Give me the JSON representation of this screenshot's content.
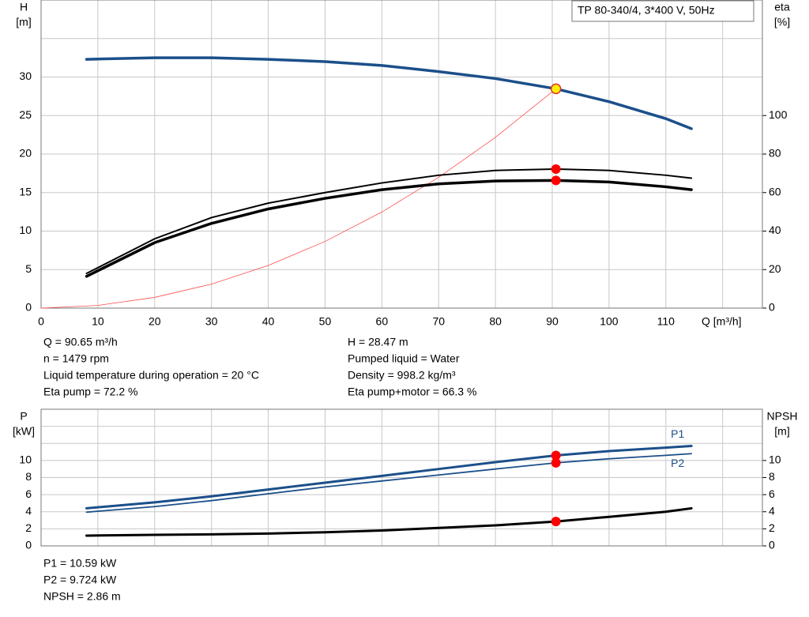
{
  "chart_data": [
    {
      "type": "line",
      "box": "TP 80-340/4, 3*400 V, 50Hz",
      "xlabel": "Q [m³/h]",
      "ylabel": [
        "H",
        "[m]"
      ],
      "y2label": [
        "eta",
        "[%]"
      ],
      "xlim": [
        0,
        127
      ],
      "ylim": [
        0,
        40
      ],
      "y2lim": [
        0,
        160
      ],
      "xticks": [
        0,
        10,
        20,
        30,
        40,
        50,
        60,
        70,
        80,
        90,
        100,
        110,
        {
          "value": 120,
          "label": null
        }
      ],
      "yticks": [
        0,
        5,
        10,
        15,
        20,
        25,
        30,
        {
          "value": 35,
          "label": null
        }
      ],
      "y2ticks": [
        0,
        20,
        40,
        60,
        80,
        100
      ],
      "grid": true,
      "series": [
        {
          "color": "#ff4d4d",
          "width": 0.8,
          "x": [
            0,
            10,
            20,
            30,
            40,
            50,
            60,
            70,
            80,
            90.65
          ],
          "values": [
            0,
            0.35,
            1.39,
            3.12,
            5.54,
            8.66,
            12.47,
            16.98,
            22.17,
            28.47
          ]
        },
        {
          "color": "#000000",
          "width": 2,
          "axis": "y2",
          "x": [
            8,
            20,
            30,
            40,
            50,
            60,
            70,
            80,
            90.65,
            100,
            110,
            114.5
          ],
          "values": [
            18,
            36,
            47,
            54.5,
            60,
            65,
            69,
            71.5,
            72.2,
            71.5,
            69,
            67.5
          ]
        },
        {
          "color": "#000000",
          "width": 3.5,
          "axis": "y2",
          "x": [
            8,
            20,
            30,
            40,
            50,
            60,
            70,
            80,
            90.65,
            100,
            110,
            114.5
          ],
          "values": [
            16.5,
            34,
            44,
            51.5,
            57,
            61.5,
            64.5,
            66,
            66.3,
            65.5,
            63,
            61.5
          ]
        },
        {
          "color": "#1b4f8a",
          "width": 3.5,
          "x": [
            8,
            20,
            30,
            40,
            50,
            60,
            70,
            80,
            90.65,
            100,
            110,
            114.5
          ],
          "values": [
            32.3,
            32.5,
            32.5,
            32.3,
            32,
            31.5,
            30.7,
            29.8,
            28.47,
            26.8,
            24.6,
            23.3
          ]
        }
      ],
      "points": [
        {
          "x": 90.65,
          "y": 72.2,
          "axis": "y2",
          "color": "#ff0000"
        },
        {
          "x": 90.65,
          "y": 66.3,
          "axis": "y2",
          "color": "#ff0000"
        },
        {
          "x": 90.65,
          "y": 28.47,
          "color": "#ffee00"
        }
      ],
      "info": [
        [
          "Q = 90.65 m³/h",
          "n = 1479 rpm",
          "Liquid temperature during operation = 20 °C",
          "Eta pump = 72.2 %"
        ],
        [
          "H = 28.47 m",
          "Pumped liquid = Water",
          "Density = 998.2 kg/m³",
          "Eta pump+motor = 66.3 %"
        ]
      ]
    },
    {
      "type": "line",
      "ylabel": [
        "P",
        "[kW]"
      ],
      "y2label": [
        "NPSH",
        "[m]"
      ],
      "xlim": [
        0,
        127
      ],
      "ylim": [
        0,
        16
      ],
      "y2lim": [
        0,
        16
      ],
      "xticks": [
        0,
        10,
        20,
        30,
        40,
        50,
        60,
        70,
        80,
        90,
        100,
        110,
        120
      ],
      "yticks": [
        0,
        2,
        4,
        6,
        8,
        10,
        {
          "value": 12,
          "label": null
        },
        {
          "value": 14,
          "label": null
        }
      ],
      "y2ticks": [
        0,
        2,
        4,
        6,
        8,
        10
      ],
      "grid": true,
      "series": [
        {
          "name": "P1",
          "color": "#1b4f8a",
          "width": 3,
          "x": [
            8,
            20,
            30,
            40,
            50,
            60,
            70,
            80,
            90.65,
            100,
            110,
            114.5
          ],
          "values": [
            4.4,
            5.1,
            5.8,
            6.6,
            7.4,
            8.2,
            9,
            9.8,
            10.59,
            11.1,
            11.5,
            11.7
          ]
        },
        {
          "name": "P2",
          "color": "#1b4f8a",
          "width": 1.8,
          "x": [
            8,
            20,
            30,
            40,
            50,
            60,
            70,
            80,
            90.65,
            100,
            110,
            114.5
          ],
          "values": [
            3.95,
            4.6,
            5.3,
            6.1,
            6.9,
            7.6,
            8.3,
            9,
            9.724,
            10.2,
            10.6,
            10.8
          ]
        },
        {
          "color": "#000000",
          "width": 3,
          "axis": "y2",
          "x": [
            8,
            20,
            30,
            40,
            50,
            60,
            70,
            80,
            90.65,
            100,
            110,
            114.5
          ],
          "values": [
            1.2,
            1.3,
            1.35,
            1.45,
            1.6,
            1.8,
            2.1,
            2.4,
            2.86,
            3.4,
            4,
            4.4
          ]
        }
      ],
      "points": [
        {
          "x": 90.65,
          "y": 10.59,
          "color": "#ff0000"
        },
        {
          "x": 90.65,
          "y": 9.724,
          "color": "#ff0000"
        },
        {
          "x": 90.65,
          "y": 2.86,
          "axis": "y2",
          "color": "#ff0000"
        }
      ],
      "info": [
        [
          "P1 = 10.59 kW",
          "P2 = 9.724 kW",
          "NPSH = 2.86 m"
        ]
      ]
    }
  ]
}
